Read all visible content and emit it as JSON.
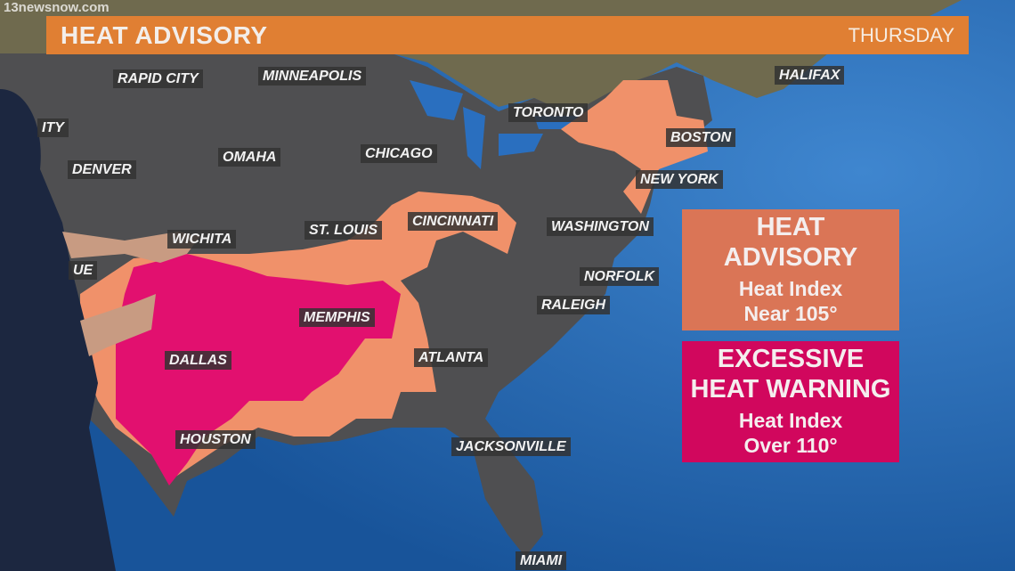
{
  "watermark": "13newsnow.com",
  "banner": {
    "title": "HEAT ADVISORY",
    "day": "THURSDAY",
    "color": "#e07f33"
  },
  "colors": {
    "ocean": "#1d5fa8",
    "land": "#4f4f51",
    "advisory": "#f0916a",
    "warning": "#e2106f"
  },
  "cities": [
    {
      "name": "RAPID CITY"
    },
    {
      "name": "MINNEAPOLIS"
    },
    {
      "name": "ITY"
    },
    {
      "name": "DENVER"
    },
    {
      "name": "OMAHA"
    },
    {
      "name": "CHICAGO"
    },
    {
      "name": "TORONTO"
    },
    {
      "name": "HALIFAX"
    },
    {
      "name": "BOSTON"
    },
    {
      "name": "NEW YORK"
    },
    {
      "name": "CINCINNATI"
    },
    {
      "name": "ST. LOUIS"
    },
    {
      "name": "WICHITA"
    },
    {
      "name": "WASHINGTON"
    },
    {
      "name": "NORFOLK"
    },
    {
      "name": "UE"
    },
    {
      "name": "RALEIGH"
    },
    {
      "name": "MEMPHIS"
    },
    {
      "name": "DALLAS"
    },
    {
      "name": "ATLANTA"
    },
    {
      "name": "HOUSTON"
    },
    {
      "name": "JACKSONVILLE"
    },
    {
      "name": "MIAMI"
    }
  ],
  "legend": {
    "advisory": {
      "title1": "HEAT",
      "title2": "ADVISORY",
      "line1": "Heat Index",
      "line2": "Near 105°",
      "color": "#da7556"
    },
    "warning": {
      "title1": "EXCESSIVE",
      "title2": "HEAT WARNING",
      "line1": "Heat Index",
      "line2": "Over 110°",
      "color": "#d1075d"
    }
  }
}
